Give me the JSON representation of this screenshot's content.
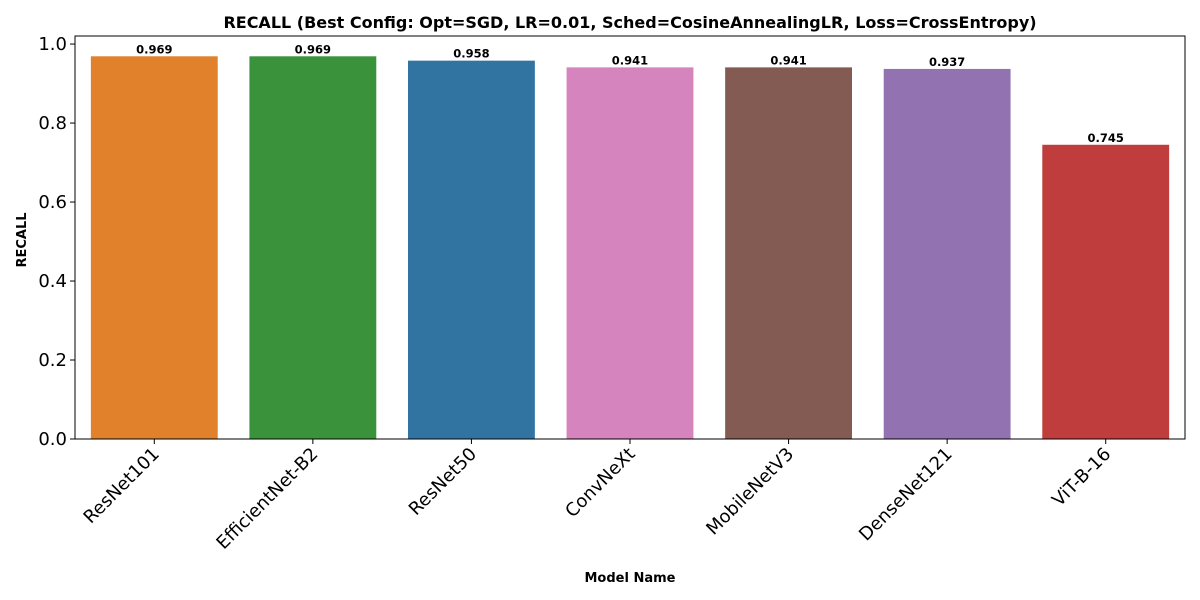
{
  "chart_data": {
    "type": "bar",
    "title": "RECALL (Best Config: Opt=SGD, LR=0.01, Sched=CosineAnnealingLR, Loss=CrossEntropy)",
    "xlabel": "Model Name",
    "ylabel": "RECALL",
    "categories": [
      "ResNet101",
      "EfficientNet-B2",
      "ResNet50",
      "ConvNeXt",
      "MobileNetV3",
      "DenseNet121",
      "ViT-B-16"
    ],
    "values": [
      0.969,
      0.969,
      0.958,
      0.941,
      0.941,
      0.937,
      0.745
    ],
    "value_labels": [
      "0.969",
      "0.969",
      "0.958",
      "0.941",
      "0.941",
      "0.937",
      "0.745"
    ],
    "colors": [
      "#e1812c",
      "#3a923a",
      "#3274a1",
      "#d684bd",
      "#845b53",
      "#9372b2",
      "#c03d3e"
    ],
    "ylim": [
      0,
      1.0
    ],
    "yticks": [
      0.0,
      0.2,
      0.4,
      0.6,
      0.8,
      1.0
    ],
    "ytick_labels": [
      "0.0",
      "0.2",
      "0.4",
      "0.6",
      "0.8",
      "1.0"
    ],
    "grid": false,
    "legend": "none"
  }
}
